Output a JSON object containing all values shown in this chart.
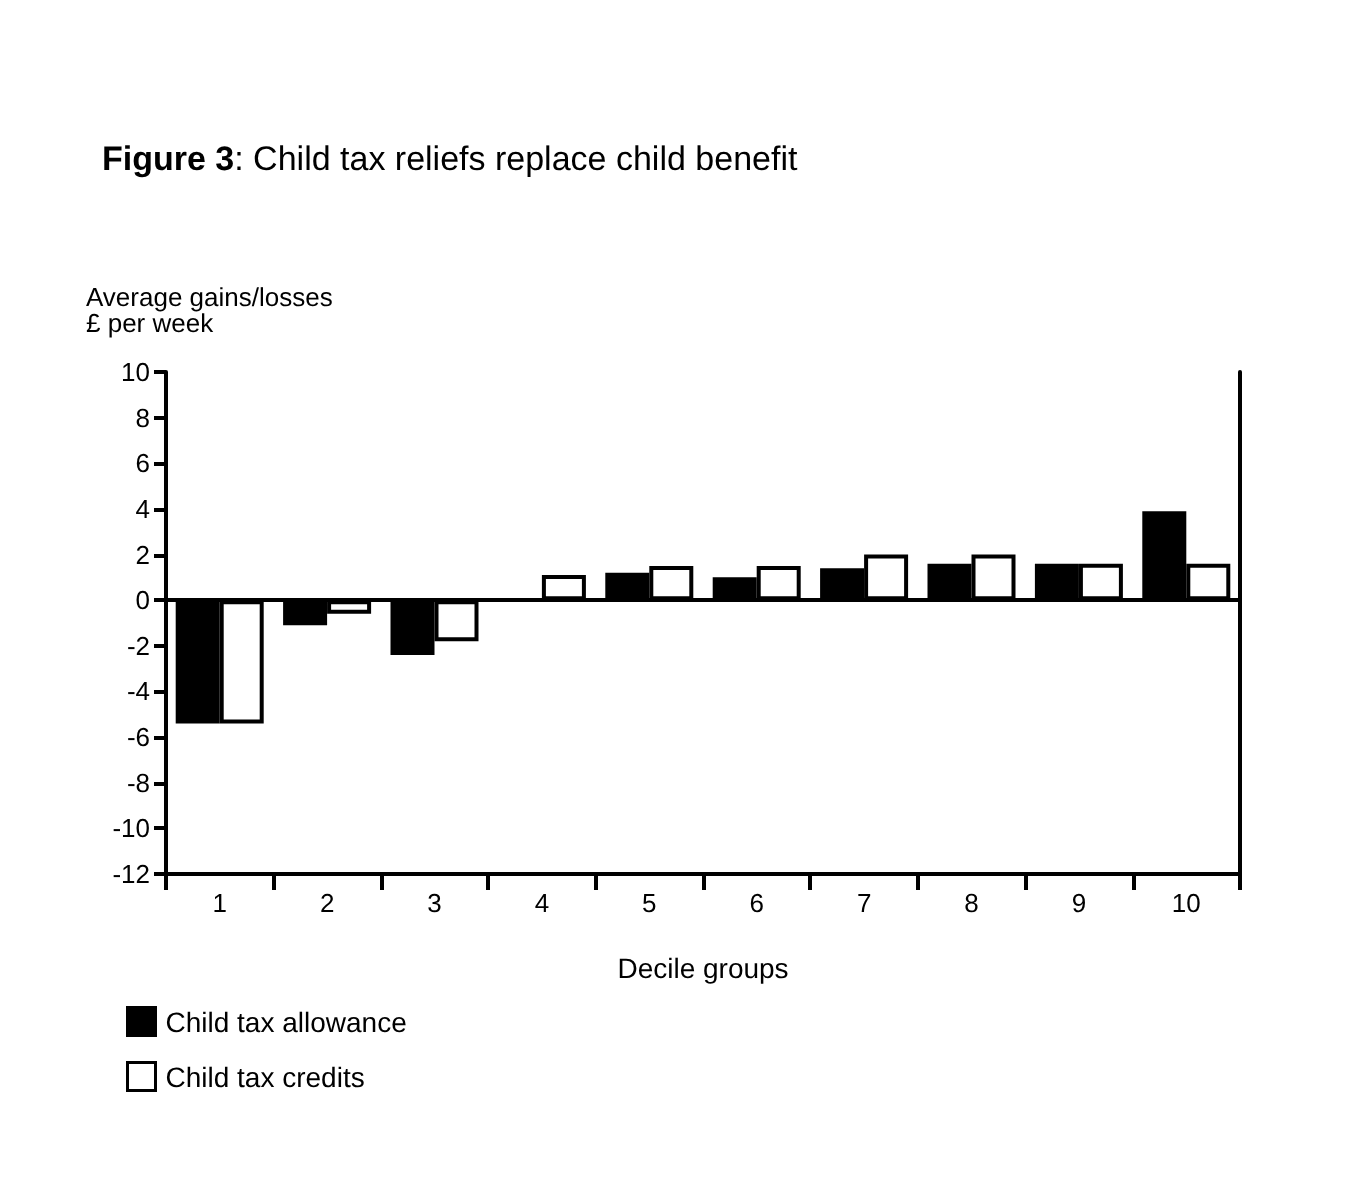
{
  "chart_data": {
    "type": "bar",
    "title": "Figure 3: Child tax reliefs replace child benefit",
    "ylabel": "Average gains/losses\n£ per week",
    "xlabel": "Decile groups",
    "categories": [
      "1",
      "2",
      "3",
      "4",
      "5",
      "6",
      "7",
      "8",
      "9",
      "10"
    ],
    "series": [
      {
        "name": "Child tax allowance",
        "color": "#000000",
        "values": [
          -5.4,
          -1.1,
          -2.4,
          null,
          1.2,
          1.0,
          1.4,
          1.6,
          1.6,
          3.9
        ]
      },
      {
        "name": "Child tax credits",
        "color": "#ffffff",
        "values": [
          -5.4,
          -0.6,
          -1.8,
          1.1,
          1.5,
          1.5,
          2.0,
          2.0,
          1.6,
          1.6
        ]
      }
    ],
    "ylim": [
      -12,
      10
    ],
    "yticks": [
      -12,
      -10,
      -8,
      -6,
      -4,
      -2,
      0,
      2,
      4,
      6,
      8,
      10
    ],
    "grid": false,
    "ref_lines": [
      {
        "axis": "y",
        "value": 0
      }
    ],
    "legend": "bottom left"
  }
}
